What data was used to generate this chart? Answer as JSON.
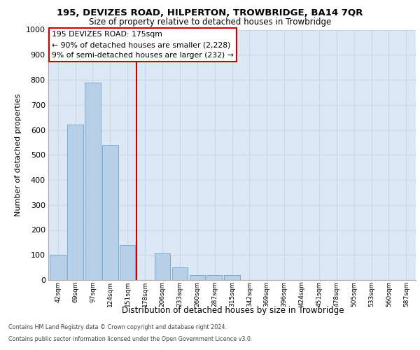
{
  "title1": "195, DEVIZES ROAD, HILPERTON, TROWBRIDGE, BA14 7QR",
  "title2": "Size of property relative to detached houses in Trowbridge",
  "xlabel": "Distribution of detached houses by size in Trowbridge",
  "ylabel": "Number of detached properties",
  "categories": [
    "42sqm",
    "69sqm",
    "97sqm",
    "124sqm",
    "151sqm",
    "178sqm",
    "206sqm",
    "233sqm",
    "260sqm",
    "287sqm",
    "315sqm",
    "342sqm",
    "369sqm",
    "396sqm",
    "424sqm",
    "451sqm",
    "478sqm",
    "505sqm",
    "533sqm",
    "560sqm",
    "587sqm"
  ],
  "values": [
    100,
    620,
    790,
    540,
    140,
    0,
    105,
    50,
    20,
    20,
    20,
    0,
    0,
    0,
    0,
    0,
    0,
    0,
    0,
    0,
    0
  ],
  "bar_color": "#b8cfe8",
  "bar_edge_color": "#7aaad4",
  "vline_color": "#cc0000",
  "vline_x": 5.0,
  "annotation_text": "195 DEVIZES ROAD: 175sqm\n← 90% of detached houses are smaller (2,228)\n9% of semi-detached houses are larger (232) →",
  "annotation_box_color": "#ffffff",
  "annotation_box_edge": "#cc0000",
  "grid_color": "#c8d8ea",
  "bg_color": "#dce8f4",
  "footer1": "Contains HM Land Registry data © Crown copyright and database right 2024.",
  "footer2": "Contains public sector information licensed under the Open Government Licence v3.0.",
  "ylim": [
    0,
    1000
  ],
  "yticks": [
    0,
    100,
    200,
    300,
    400,
    500,
    600,
    700,
    800,
    900,
    1000
  ]
}
